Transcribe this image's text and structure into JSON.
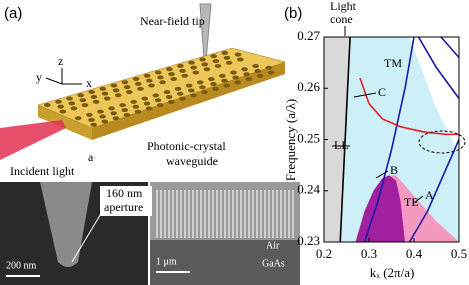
{
  "panel_a": {
    "label": "(a)",
    "tip": "Near-field tip",
    "axis_z": "z",
    "axis_y": "y",
    "axis_x": "x",
    "waveguide_line1": "Photonic-crystal",
    "waveguide_line2": "waveguide",
    "period": "a",
    "incident": "Incident light",
    "aperture_line1": "160 nm",
    "aperture_line2": "aperture",
    "scale_left": "200 nm",
    "scale_right": "1 μm",
    "air": "Air",
    "gaas": "GaAs"
  },
  "chart_data": {
    "type": "line",
    "label": "(b)",
    "ylabel": "Frequency (a/λ)",
    "xlabel": "kₓ (2π/a)",
    "xlim": [
      0.2,
      0.5
    ],
    "ylim": [
      0.23,
      0.27
    ],
    "xticks": [
      0.2,
      0.3,
      0.4,
      0.5
    ],
    "yticks": [
      0.23,
      0.24,
      0.25,
      0.26,
      0.27
    ],
    "annotations": [
      "Light",
      "cone",
      "TM",
      "C",
      "LL",
      "B",
      "TE",
      "A"
    ],
    "series": [
      {
        "area": true,
        "color": "#d9d9d9",
        "x": [
          0.2,
          0.236,
          0.258,
          0.2
        ],
        "values": [
          0.23,
          0.23,
          0.27,
          0.27
        ]
      },
      {
        "area": true,
        "color": "#cdeff8",
        "x": [
          0.236,
          0.258,
          0.39,
          0.45,
          0.5,
          0.5
        ],
        "values": [
          0.23,
          0.27,
          0.27,
          0.256,
          0.247,
          0.23
        ]
      },
      {
        "area": true,
        "color": "#f49ac1",
        "x": [
          0.33,
          0.345,
          0.36,
          0.4,
          0.45,
          0.5
        ],
        "values": [
          0.23,
          0.243,
          0.243,
          0.239,
          0.234,
          0.23
        ]
      },
      {
        "area": true,
        "color": "#a020a0",
        "x": [
          0.27,
          0.29,
          0.31,
          0.33,
          0.345,
          0.36,
          0.37,
          0.38
        ],
        "values": [
          0.23,
          0.236,
          0.24,
          0.2425,
          0.243,
          0.242,
          0.238,
          0.23
        ]
      },
      {
        "color": "#000000",
        "x": [
          0.236,
          0.258
        ],
        "values": [
          0.23,
          0.27
        ]
      },
      {
        "color": "#1a1aa6",
        "x": [
          0.29,
          0.32,
          0.35,
          0.38,
          0.4
        ],
        "values": [
          0.23,
          0.238,
          0.248,
          0.26,
          0.27
        ]
      },
      {
        "color": "#1a1aa6",
        "x": [
          0.39,
          0.43,
          0.47,
          0.5
        ],
        "values": [
          0.23,
          0.236,
          0.244,
          0.25
        ]
      },
      {
        "color": "#1a1aa6",
        "x": [
          0.41,
          0.45,
          0.5
        ],
        "values": [
          0.27,
          0.264,
          0.258
        ]
      },
      {
        "color": "#1a1aa6",
        "x": [
          0.46,
          0.5
        ],
        "values": [
          0.27,
          0.266
        ]
      },
      {
        "color": "#e02020",
        "x": [
          0.28,
          0.3,
          0.33,
          0.37,
          0.42,
          0.47,
          0.5
        ],
        "values": [
          0.262,
          0.257,
          0.254,
          0.2525,
          0.2515,
          0.251,
          0.251
        ]
      }
    ]
  }
}
